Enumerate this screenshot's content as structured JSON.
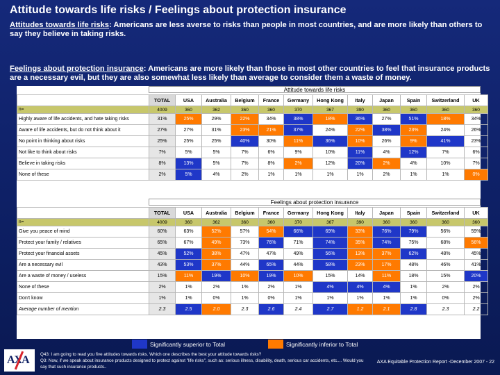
{
  "slide": {
    "title": "Attitude towards life risks / Feelings about protection insurance",
    "p1_heading": "Attitudes towards life risks",
    "p1_text": ": Americans are less averse to risks than people in most countries, and are more likely than others to say they believe in taking risks.",
    "p2_heading": "Feelings about protection insurance",
    "p2_text": ": Americans are more likely than those in most other countries to feel that insurance products are a necessary evil, but they are also somewhat less likely than average to consider them a waste of money."
  },
  "columns": [
    "TOTAL",
    "USA",
    "Australia",
    "Belgium",
    "France",
    "Germany",
    "Hong Kong",
    "Italy",
    "Japan",
    "Spain",
    "Switzerland",
    "UK"
  ],
  "n_label": "n=",
  "n_values": [
    "4009",
    "360",
    "362",
    "360",
    "360",
    "370",
    "367",
    "390",
    "360",
    "360",
    "360",
    "360"
  ],
  "table1": {
    "title": "Attitude towards life risks",
    "rows": [
      {
        "label": "Highly aware of life accidents, and hate taking risks",
        "values": [
          "31%",
          "25%",
          "29%",
          "22%",
          "34%",
          "38%",
          "18%",
          "36%",
          "27%",
          "51%",
          "18%",
          "34%"
        ],
        "flags": [
          "",
          "inf",
          "",
          "inf",
          "",
          "sup",
          "inf",
          "sup",
          "",
          "sup",
          "inf",
          ""
        ]
      },
      {
        "label": "Aware of life accidents, but do not think about it",
        "values": [
          "27%",
          "27%",
          "31%",
          "23%",
          "21%",
          "37%",
          "24%",
          "22%",
          "38%",
          "23%",
          "24%",
          "26%"
        ],
        "flags": [
          "",
          "",
          "",
          "inf",
          "inf",
          "sup",
          "",
          "inf",
          "sup",
          "inf",
          "",
          ""
        ]
      },
      {
        "label": "No point in thinking about risks",
        "values": [
          "25%",
          "25%",
          "25%",
          "40%",
          "30%",
          "11%",
          "36%",
          "10%",
          "26%",
          "9%",
          "41%",
          "23%"
        ],
        "flags": [
          "",
          "",
          "",
          "sup",
          "",
          "inf",
          "sup",
          "inf",
          "",
          "inf",
          "sup",
          ""
        ]
      },
      {
        "label": "Not like to think about risks",
        "values": [
          "7%",
          "5%",
          "5%",
          "7%",
          "6%",
          "9%",
          "10%",
          "11%",
          "4%",
          "12%",
          "7%",
          "6%"
        ],
        "flags": [
          "",
          "",
          "",
          "",
          "",
          "",
          "",
          "sup",
          "",
          "sup",
          "",
          ""
        ]
      },
      {
        "label": "Believe in taking risks",
        "values": [
          "8%",
          "13%",
          "5%",
          "7%",
          "8%",
          "2%",
          "12%",
          "20%",
          "2%",
          "4%",
          "10%",
          "7%"
        ],
        "flags": [
          "",
          "sup",
          "",
          "",
          "",
          "inf",
          "",
          "sup",
          "inf",
          "",
          "",
          ""
        ]
      },
      {
        "label": "None of these",
        "values": [
          "2%",
          "5%",
          "4%",
          "2%",
          "1%",
          "1%",
          "1%",
          "1%",
          "2%",
          "1%",
          "1%",
          "0%"
        ],
        "flags": [
          "",
          "sup",
          "",
          "",
          "",
          "",
          "",
          "",
          "",
          "",
          "",
          "inf"
        ]
      }
    ]
  },
  "table2": {
    "title": "Feelings about protection insurance",
    "rows": [
      {
        "label": "Give you peace of mind",
        "values": [
          "60%",
          "63%",
          "52%",
          "57%",
          "54%",
          "66%",
          "69%",
          "33%",
          "76%",
          "79%",
          "56%",
          "59%"
        ],
        "flags": [
          "",
          "",
          "inf",
          "",
          "inf",
          "sup",
          "sup",
          "inf",
          "sup",
          "sup",
          "",
          ""
        ]
      },
      {
        "label": "Protect your family / relatives",
        "values": [
          "65%",
          "67%",
          "49%",
          "73%",
          "76%",
          "71%",
          "74%",
          "35%",
          "74%",
          "75%",
          "68%",
          "56%"
        ],
        "flags": [
          "",
          "",
          "inf",
          "",
          "sup",
          "",
          "sup",
          "inf",
          "sup",
          "",
          "",
          "inf"
        ]
      },
      {
        "label": "Protect your financial assets",
        "values": [
          "45%",
          "52%",
          "38%",
          "47%",
          "47%",
          "49%",
          "56%",
          "13%",
          "37%",
          "62%",
          "48%",
          "45%"
        ],
        "flags": [
          "",
          "sup",
          "inf",
          "",
          "",
          "",
          "sup",
          "inf",
          "inf",
          "sup",
          "",
          ""
        ]
      },
      {
        "label": "Are a necessary evil",
        "values": [
          "43%",
          "53%",
          "37%",
          "44%",
          "65%",
          "44%",
          "58%",
          "23%",
          "17%",
          "48%",
          "46%",
          "41%"
        ],
        "flags": [
          "",
          "sup",
          "inf",
          "",
          "sup",
          "",
          "sup",
          "inf",
          "inf",
          "",
          "",
          ""
        ]
      },
      {
        "label": "Are a waste of money / useless",
        "values": [
          "15%",
          "11%",
          "19%",
          "10%",
          "19%",
          "10%",
          "15%",
          "14%",
          "11%",
          "18%",
          "15%",
          "20%"
        ],
        "flags": [
          "",
          "inf",
          "sup",
          "inf",
          "sup",
          "inf",
          "",
          "",
          "inf",
          "",
          "",
          "sup"
        ]
      },
      {
        "label": "None of these",
        "values": [
          "2%",
          "1%",
          "2%",
          "1%",
          "2%",
          "1%",
          "4%",
          "4%",
          "4%",
          "1%",
          "2%",
          "2%"
        ],
        "flags": [
          "",
          "",
          "",
          "",
          "",
          "",
          "sup",
          "sup",
          "sup",
          "",
          "",
          ""
        ]
      },
      {
        "label": "Don't know",
        "values": [
          "1%",
          "1%",
          "0%",
          "1%",
          "0%",
          "1%",
          "1%",
          "1%",
          "1%",
          "1%",
          "0%",
          "2%"
        ],
        "flags": [
          "",
          "",
          "",
          "",
          "",
          "",
          "",
          "",
          "",
          "",
          "",
          ""
        ]
      },
      {
        "label": "Average number of mention",
        "values": [
          "2.3",
          "2.5",
          "2.0",
          "2.3",
          "2.6",
          "2.4",
          "2.7",
          "1.2",
          "2.1",
          "2.8",
          "2.3",
          "2.2"
        ],
        "flags": [
          "",
          "sup",
          "inf",
          "",
          "sup",
          "",
          "sup",
          "inf",
          "inf",
          "sup",
          "",
          ""
        ]
      }
    ]
  },
  "legend": {
    "superior": "Significantly superior to Total",
    "inferior": "Significantly inferior to Total",
    "superior_color": "#1f37c8",
    "inferior_color": "#ff7a00"
  },
  "footnote": {
    "q43": "Q43: I am going to read you five attitudes towards risks. Which one describes the best your attitude towards risks?",
    "q3": "Q3: Now, if we speak about insurance products designed to protect against \"life risks\", such as: serious illness, disability, death, serious car accidents, etc.... Would you say that such insurance products..",
    "report": "AXA Equitable Protection Report -December  2007 - 22"
  },
  "logo": {
    "text": "AXA"
  }
}
